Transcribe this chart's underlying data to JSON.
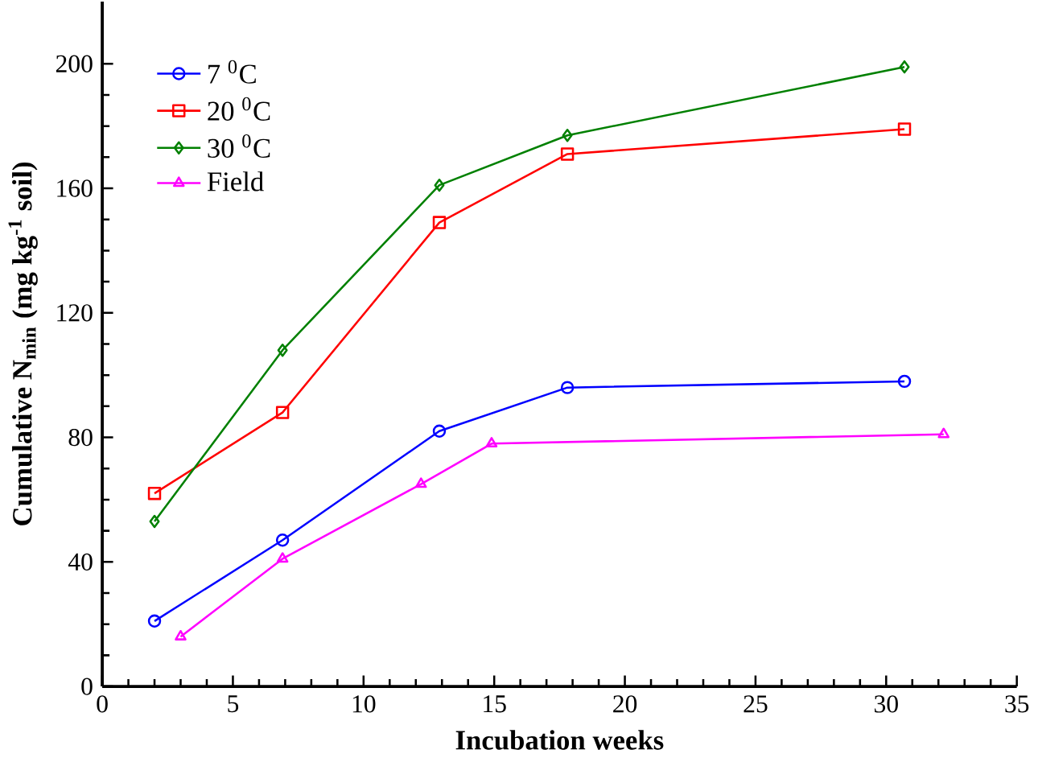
{
  "chart_data": {
    "type": "line",
    "xlabel": "Incubation weeks",
    "ylabel": "Cumulative N$_{min}$ (mg kg$^{-1}$ soil)",
    "xlim": [
      0,
      35
    ],
    "xticks": [
      0,
      5,
      10,
      15,
      20,
      25,
      30,
      35
    ],
    "ylim": [
      0,
      220
    ],
    "yticks": [
      0,
      40,
      80,
      120,
      160,
      200
    ],
    "legend": "top left",
    "grid": false,
    "line_style": "solid",
    "series": [
      {
        "name": "7 $^{0}$C",
        "color": "#0000ff",
        "marker": "circle",
        "x": [
          2,
          6.9,
          12.9,
          17.8,
          30.7
        ],
        "values": [
          21,
          47,
          82,
          96,
          98
        ]
      },
      {
        "name": "20 $^{0}$C",
        "color": "#ff0000",
        "marker": "square",
        "x": [
          2,
          6.9,
          12.9,
          17.8,
          30.7
        ],
        "values": [
          62,
          88,
          149,
          171,
          179
        ]
      },
      {
        "name": "30 $^{0}$C",
        "color": "#008000",
        "marker": "diamond",
        "x": [
          2,
          6.9,
          12.9,
          17.8,
          30.7
        ],
        "values": [
          53,
          108,
          161,
          177,
          199
        ]
      },
      {
        "name": "Field",
        "color": "#ff00ff",
        "marker": "triangle",
        "x": [
          3,
          6.9,
          12.2,
          14.9,
          32.2
        ],
        "values": [
          16,
          41,
          65,
          78,
          81
        ]
      }
    ]
  }
}
